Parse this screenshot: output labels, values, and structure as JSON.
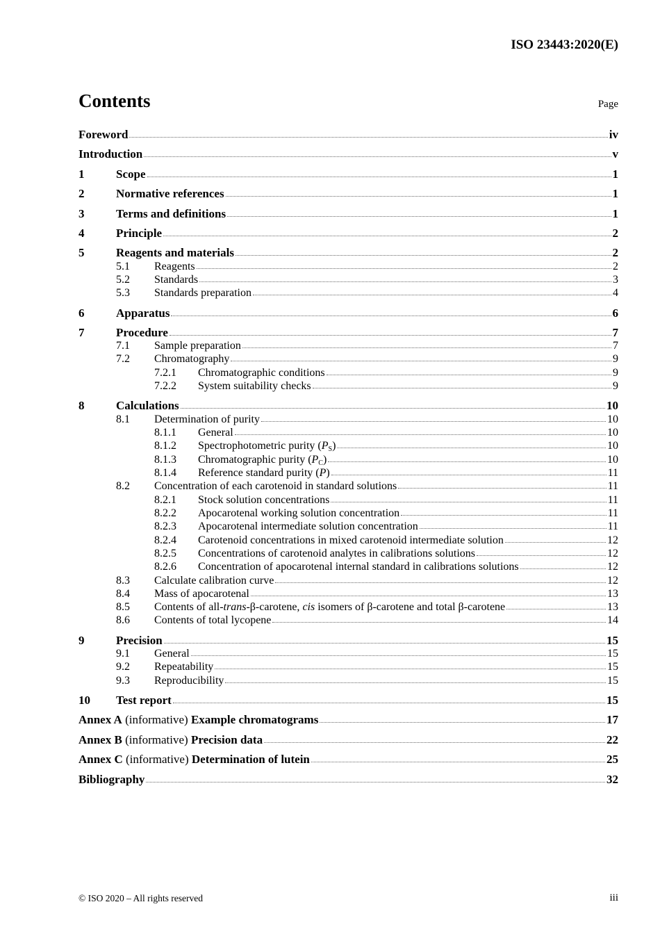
{
  "header": {
    "standard_id": "ISO 23443:2020(E)"
  },
  "contents": {
    "title": "Contents",
    "page_label": "Page",
    "entries": [
      {
        "level": 1,
        "num": "",
        "segments": [
          {
            "t": "Foreword"
          }
        ],
        "page": "iv"
      },
      {
        "level": 1,
        "num": "",
        "segments": [
          {
            "t": "Introduction"
          }
        ],
        "page": "v"
      },
      {
        "level": 1,
        "num": "1",
        "segments": [
          {
            "t": "Scope"
          }
        ],
        "page": "1"
      },
      {
        "level": 1,
        "num": "2",
        "segments": [
          {
            "t": "Normative references"
          }
        ],
        "page": "1"
      },
      {
        "level": 1,
        "num": "3",
        "segments": [
          {
            "t": "Terms and definitions"
          }
        ],
        "page": "1"
      },
      {
        "level": 1,
        "num": "4",
        "segments": [
          {
            "t": "Principle"
          }
        ],
        "page": "2"
      },
      {
        "level": 1,
        "num": "5",
        "segments": [
          {
            "t": "Reagents and materials"
          }
        ],
        "page": "2"
      },
      {
        "level": 2,
        "num": "5.1",
        "segments": [
          {
            "t": "Reagents"
          }
        ],
        "page": "2"
      },
      {
        "level": 2,
        "num": "5.2",
        "segments": [
          {
            "t": "Standards"
          }
        ],
        "page": "3"
      },
      {
        "level": 2,
        "num": "5.3",
        "segments": [
          {
            "t": "Standards preparation"
          }
        ],
        "page": "4"
      },
      {
        "level": 1,
        "num": "6",
        "segments": [
          {
            "t": "Apparatus"
          }
        ],
        "page": "6"
      },
      {
        "level": 1,
        "num": "7",
        "segments": [
          {
            "t": "Procedure"
          }
        ],
        "page": "7"
      },
      {
        "level": 2,
        "num": "7.1",
        "segments": [
          {
            "t": "Sample preparation"
          }
        ],
        "page": "7"
      },
      {
        "level": 2,
        "num": "7.2",
        "segments": [
          {
            "t": "Chromatography"
          }
        ],
        "page": "9"
      },
      {
        "level": 3,
        "num": "7.2.1",
        "segments": [
          {
            "t": "Chromatographic conditions"
          }
        ],
        "page": "9"
      },
      {
        "level": 3,
        "num": "7.2.2",
        "segments": [
          {
            "t": "System suitability checks"
          }
        ],
        "page": "9"
      },
      {
        "level": 1,
        "num": "8",
        "segments": [
          {
            "t": "Calculations"
          }
        ],
        "page": "10"
      },
      {
        "level": 2,
        "num": "8.1",
        "segments": [
          {
            "t": "Determination of purity"
          }
        ],
        "page": "10"
      },
      {
        "level": 3,
        "num": "8.1.1",
        "segments": [
          {
            "t": "General"
          }
        ],
        "page": "10"
      },
      {
        "level": 3,
        "num": "8.1.2",
        "segments": [
          {
            "t": "Spectrophotometric purity ("
          },
          {
            "t": "P",
            "i": true
          },
          {
            "t": "S",
            "sub": true
          },
          {
            "t": ")"
          }
        ],
        "page": "10"
      },
      {
        "level": 3,
        "num": "8.1.3",
        "segments": [
          {
            "t": "Chromatographic purity ("
          },
          {
            "t": "P",
            "i": true
          },
          {
            "t": "C",
            "sub": true
          },
          {
            "t": ")"
          }
        ],
        "page": "10"
      },
      {
        "level": 3,
        "num": "8.1.4",
        "segments": [
          {
            "t": "Reference standard purity ("
          },
          {
            "t": "P",
            "i": true
          },
          {
            "t": ")"
          }
        ],
        "page": "11"
      },
      {
        "level": 2,
        "num": "8.2",
        "segments": [
          {
            "t": "Concentration of each carotenoid in standard solutions"
          }
        ],
        "page": "11"
      },
      {
        "level": 3,
        "num": "8.2.1",
        "segments": [
          {
            "t": "Stock solution concentrations"
          }
        ],
        "page": "11"
      },
      {
        "level": 3,
        "num": "8.2.2",
        "segments": [
          {
            "t": "Apocarotenal working solution concentration"
          }
        ],
        "page": "11"
      },
      {
        "level": 3,
        "num": "8.2.3",
        "segments": [
          {
            "t": "Apocarotenal intermediate solution concentration"
          }
        ],
        "page": "11"
      },
      {
        "level": 3,
        "num": "8.2.4",
        "segments": [
          {
            "t": "Carotenoid concentrations in mixed carotenoid intermediate solution"
          }
        ],
        "page": "12"
      },
      {
        "level": 3,
        "num": "8.2.5",
        "segments": [
          {
            "t": "Concentrations of carotenoid analytes in calibrations solutions"
          }
        ],
        "page": "12"
      },
      {
        "level": 3,
        "num": "8.2.6",
        "segments": [
          {
            "t": "Concentration of apocarotenal internal standard in calibrations solutions"
          }
        ],
        "page": "12"
      },
      {
        "level": 2,
        "num": "8.3",
        "segments": [
          {
            "t": "Calculate calibration curve"
          }
        ],
        "page": "12"
      },
      {
        "level": 2,
        "num": "8.4",
        "segments": [
          {
            "t": "Mass of apocarotenal"
          }
        ],
        "page": "13"
      },
      {
        "level": 2,
        "num": "8.5",
        "segments": [
          {
            "t": "Contents of all-"
          },
          {
            "t": "trans",
            "i": true
          },
          {
            "t": "-β-carotene, "
          },
          {
            "t": "cis",
            "i": true
          },
          {
            "t": " isomers of β-carotene and total β-carotene"
          }
        ],
        "page": "13"
      },
      {
        "level": 2,
        "num": "8.6",
        "segments": [
          {
            "t": "Contents of total lycopene"
          }
        ],
        "page": "14"
      },
      {
        "level": 1,
        "num": "9",
        "segments": [
          {
            "t": "Precision"
          }
        ],
        "page": "15"
      },
      {
        "level": 2,
        "num": "9.1",
        "segments": [
          {
            "t": "General"
          }
        ],
        "page": "15"
      },
      {
        "level": 2,
        "num": "9.2",
        "segments": [
          {
            "t": "Repeatability"
          }
        ],
        "page": "15"
      },
      {
        "level": 2,
        "num": "9.3",
        "segments": [
          {
            "t": "Reproducibility"
          }
        ],
        "page": "15"
      },
      {
        "level": 1,
        "num": "10",
        "segments": [
          {
            "t": "Test report"
          }
        ],
        "page": "15"
      },
      {
        "level": 1,
        "num": "",
        "segments": [
          {
            "t": "Annex A"
          },
          {
            "t": " (informative) ",
            "n": true
          },
          {
            "t": "Example chromatograms"
          }
        ],
        "page": "17"
      },
      {
        "level": 1,
        "num": "",
        "segments": [
          {
            "t": "Annex B"
          },
          {
            "t": " (informative) ",
            "n": true
          },
          {
            "t": "Precision data"
          }
        ],
        "page": "22"
      },
      {
        "level": 1,
        "num": "",
        "segments": [
          {
            "t": "Annex C"
          },
          {
            "t": " (informative) ",
            "n": true
          },
          {
            "t": "Determination of lutein"
          }
        ],
        "page": "25"
      },
      {
        "level": 1,
        "num": "",
        "segments": [
          {
            "t": "Bibliography"
          }
        ],
        "page": "32"
      }
    ]
  },
  "footer": {
    "copyright": "© ISO 2020 – All rights reserved",
    "page_number": "iii"
  }
}
